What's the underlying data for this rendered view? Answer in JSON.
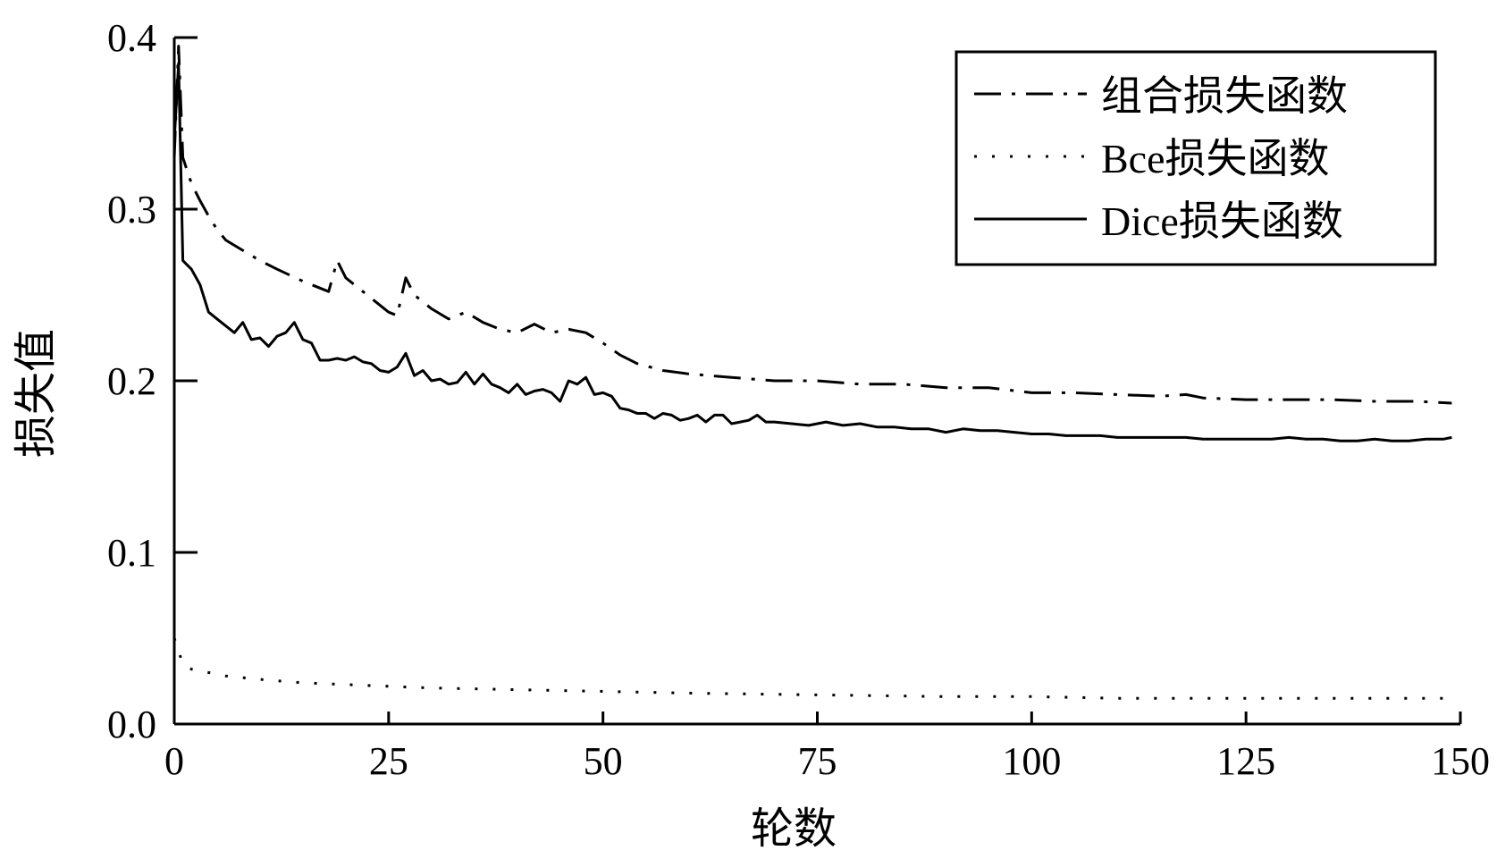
{
  "chart_data": {
    "type": "line",
    "xlabel": "轮数",
    "ylabel": "损失值",
    "xlim": [
      0,
      150
    ],
    "ylim": [
      0.0,
      0.4
    ],
    "xticks": [
      "0",
      "25",
      "50",
      "75",
      "100",
      "125",
      "150"
    ],
    "yticks": [
      "0.0",
      "0.1",
      "0.2",
      "0.3",
      "0.4"
    ],
    "legend_position": "top-right",
    "grid": false,
    "series": [
      {
        "name": "组合损失函数",
        "style": "dashdot",
        "x": [
          0,
          0.5,
          1,
          2,
          3,
          4,
          5,
          6,
          8,
          10,
          12,
          15,
          18,
          19,
          20,
          22,
          25,
          26,
          27,
          28,
          30,
          32,
          34,
          36,
          38,
          40,
          42,
          44,
          46,
          48,
          50,
          52,
          54,
          57,
          60,
          65,
          70,
          75,
          80,
          85,
          90,
          95,
          100,
          105,
          110,
          115,
          118,
          120,
          125,
          130,
          135,
          140,
          145,
          149
        ],
        "y": [
          0.33,
          0.395,
          0.33,
          0.315,
          0.305,
          0.296,
          0.288,
          0.282,
          0.276,
          0.27,
          0.265,
          0.258,
          0.252,
          0.27,
          0.26,
          0.252,
          0.24,
          0.238,
          0.26,
          0.25,
          0.242,
          0.236,
          0.24,
          0.234,
          0.23,
          0.228,
          0.233,
          0.228,
          0.23,
          0.228,
          0.222,
          0.215,
          0.21,
          0.206,
          0.204,
          0.202,
          0.2,
          0.2,
          0.198,
          0.198,
          0.196,
          0.196,
          0.193,
          0.193,
          0.192,
          0.191,
          0.192,
          0.19,
          0.189,
          0.189,
          0.189,
          0.188,
          0.188,
          0.187
        ]
      },
      {
        "name": "Bce损失函数",
        "style": "dotted",
        "x": [
          0,
          1,
          2,
          4,
          6,
          10,
          15,
          20,
          25,
          30,
          40,
          50,
          60,
          75,
          90,
          100,
          110,
          120,
          130,
          140,
          149
        ],
        "y": [
          0.05,
          0.035,
          0.032,
          0.03,
          0.028,
          0.026,
          0.024,
          0.023,
          0.022,
          0.021,
          0.02,
          0.019,
          0.018,
          0.017,
          0.016,
          0.016,
          0.015,
          0.015,
          0.015,
          0.015,
          0.015
        ]
      },
      {
        "name": "Dice损失函数",
        "style": "solid",
        "x": [
          0,
          0.5,
          1,
          2,
          3,
          4,
          5,
          6,
          7,
          8,
          9,
          10,
          11,
          12,
          13,
          14,
          15,
          16,
          17,
          18,
          19,
          20,
          21,
          22,
          23,
          24,
          25,
          26,
          27,
          28,
          29,
          30,
          31,
          32,
          33,
          34,
          35,
          36,
          37,
          38,
          39,
          40,
          41,
          42,
          43,
          44,
          45,
          46,
          47,
          48,
          49,
          50,
          51,
          52,
          53,
          54,
          55,
          56,
          57,
          58,
          59,
          60,
          61,
          62,
          63,
          64,
          65,
          66,
          67,
          68,
          69,
          70,
          72,
          74,
          76,
          78,
          80,
          82,
          84,
          86,
          88,
          90,
          92,
          94,
          96,
          98,
          100,
          102,
          104,
          106,
          108,
          110,
          112,
          114,
          116,
          118,
          120,
          122,
          124,
          126,
          128,
          130,
          132,
          134,
          136,
          138,
          140,
          142,
          144,
          146,
          148,
          149
        ],
        "y": [
          0.34,
          0.385,
          0.27,
          0.265,
          0.256,
          0.24,
          0.236,
          0.232,
          0.228,
          0.234,
          0.224,
          0.225,
          0.22,
          0.226,
          0.228,
          0.234,
          0.224,
          0.222,
          0.212,
          0.212,
          0.213,
          0.212,
          0.214,
          0.211,
          0.21,
          0.206,
          0.205,
          0.208,
          0.216,
          0.203,
          0.206,
          0.2,
          0.201,
          0.198,
          0.199,
          0.205,
          0.198,
          0.204,
          0.198,
          0.196,
          0.193,
          0.198,
          0.192,
          0.194,
          0.195,
          0.193,
          0.188,
          0.2,
          0.198,
          0.202,
          0.192,
          0.193,
          0.191,
          0.184,
          0.183,
          0.181,
          0.181,
          0.178,
          0.181,
          0.18,
          0.177,
          0.178,
          0.18,
          0.176,
          0.18,
          0.18,
          0.175,
          0.176,
          0.177,
          0.18,
          0.176,
          0.176,
          0.175,
          0.174,
          0.176,
          0.174,
          0.175,
          0.173,
          0.173,
          0.172,
          0.172,
          0.17,
          0.172,
          0.171,
          0.171,
          0.17,
          0.169,
          0.169,
          0.168,
          0.168,
          0.168,
          0.167,
          0.167,
          0.167,
          0.167,
          0.167,
          0.166,
          0.166,
          0.166,
          0.166,
          0.166,
          0.167,
          0.166,
          0.166,
          0.165,
          0.165,
          0.166,
          0.165,
          0.165,
          0.166,
          0.166,
          0.167
        ]
      }
    ]
  }
}
